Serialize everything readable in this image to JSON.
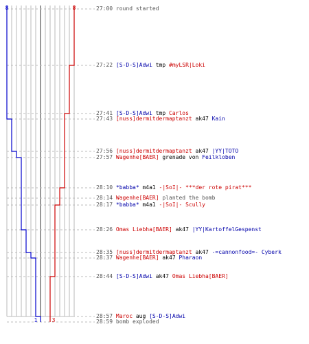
{
  "chart_data": {
    "type": "line",
    "series": [
      {
        "color": "#0000cc",
        "start": 8,
        "end": 1
      },
      {
        "color": "#cc0000",
        "start": 8,
        "end": 3
      }
    ],
    "axis_start_labels": {
      "left": "8",
      "right": "8"
    },
    "axis_end_labels": {
      "left": "1",
      "right": "3"
    },
    "events": [
      {
        "time": "27:00",
        "segs": [
          {
            "c": "w",
            "t": "round started"
          }
        ],
        "blue": 8,
        "red": 8
      },
      {
        "time": "27:22",
        "segs": [
          {
            "c": "b",
            "t": "[S-D-S]Adwi"
          },
          {
            "c": "n",
            "t": " tmp "
          },
          {
            "c": "r",
            "t": "#myLSR|Loki"
          }
        ],
        "blue": 8,
        "red": 7
      },
      {
        "time": "27:41",
        "segs": [
          {
            "c": "b",
            "t": "[S-D-S]Adwi"
          },
          {
            "c": "n",
            "t": " tmp "
          },
          {
            "c": "r",
            "t": "Carlos"
          }
        ],
        "blue": 8,
        "red": 6
      },
      {
        "time": "27:43",
        "segs": [
          {
            "c": "r",
            "t": "[nuss]dermitdermaptanzt"
          },
          {
            "c": "n",
            "t": " ak47 "
          },
          {
            "c": "b",
            "t": "Kain"
          }
        ],
        "blue": 7,
        "red": 6
      },
      {
        "time": "27:56",
        "segs": [
          {
            "c": "r",
            "t": "[nuss]dermitdermaptanzt"
          },
          {
            "c": "n",
            "t": " ak47 "
          },
          {
            "c": "b",
            "t": "|YY|TOTO"
          }
        ],
        "blue": 6,
        "red": 6
      },
      {
        "time": "27:57",
        "segs": [
          {
            "c": "r",
            "t": "Wagenhe[BAER]"
          },
          {
            "c": "n",
            "t": " grenade von "
          },
          {
            "c": "b",
            "t": "Feilkloben"
          }
        ],
        "blue": 5,
        "red": 6
      },
      {
        "time": "28:10",
        "segs": [
          {
            "c": "b",
            "t": "*babba*"
          },
          {
            "c": "n",
            "t": " m4a1 "
          },
          {
            "c": "r",
            "t": "-|SoI|- ***der rote pirat***"
          }
        ],
        "blue": 5,
        "red": 5
      },
      {
        "time": "28:14",
        "segs": [
          {
            "c": "r",
            "t": "Wagenhe[BAER]"
          },
          {
            "c": "w",
            "t": " planted the bomb"
          }
        ],
        "blue": 5,
        "red": 5
      },
      {
        "time": "28:17",
        "segs": [
          {
            "c": "b",
            "t": "*babba*"
          },
          {
            "c": "n",
            "t": " m4a1 "
          },
          {
            "c": "r",
            "t": "-|SoI|- Scully"
          }
        ],
        "blue": 5,
        "red": 4
      },
      {
        "time": "28:26",
        "segs": [
          {
            "c": "r",
            "t": "Omas Liebha[BAER]"
          },
          {
            "c": "n",
            "t": " ak47 "
          },
          {
            "c": "b",
            "t": "|YY|KartoffelGespenst"
          }
        ],
        "blue": 4,
        "red": 4
      },
      {
        "time": "28:35",
        "segs": [
          {
            "c": "r",
            "t": "[nuss]dermitdermaptanzt"
          },
          {
            "c": "n",
            "t": " ak47 "
          },
          {
            "c": "b",
            "t": "-=cannonfood=- Cyberk"
          }
        ],
        "blue": 3,
        "red": 4
      },
      {
        "time": "28:37",
        "segs": [
          {
            "c": "r",
            "t": "Wagenhe[BAER]"
          },
          {
            "c": "n",
            "t": " ak47 "
          },
          {
            "c": "b",
            "t": "Pharaon"
          }
        ],
        "blue": 2,
        "red": 4
      },
      {
        "time": "28:44",
        "segs": [
          {
            "c": "b",
            "t": "[S-D-S]Adwi"
          },
          {
            "c": "n",
            "t": " ak47 "
          },
          {
            "c": "r",
            "t": "Omas Liebha[BAER]"
          }
        ],
        "blue": 2,
        "red": 3
      },
      {
        "time": "28:57",
        "segs": [
          {
            "c": "r",
            "t": "Maroc"
          },
          {
            "c": "n",
            "t": " aug "
          },
          {
            "c": "b",
            "t": "[S-D-S]Adwi"
          }
        ],
        "blue": 1,
        "red": 3
      },
      {
        "time": "28:59",
        "segs": [
          {
            "c": "w",
            "t": "bomb exploded"
          }
        ],
        "blue": 1,
        "red": 3
      }
    ]
  }
}
